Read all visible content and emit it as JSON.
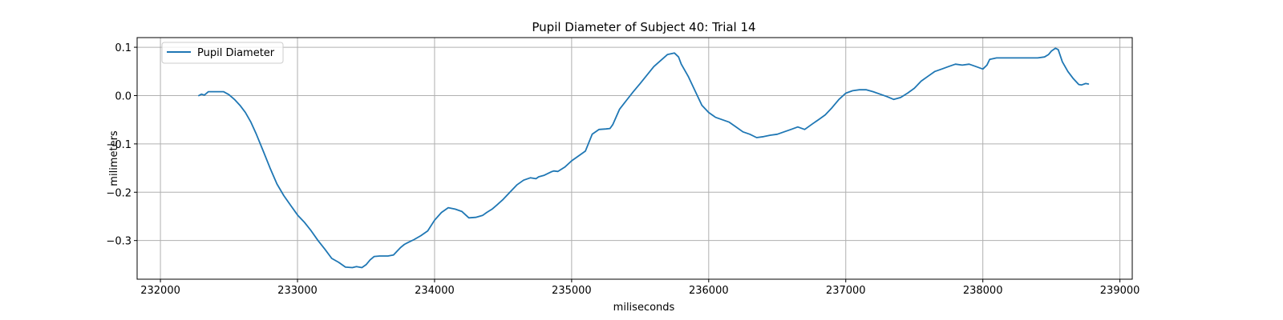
{
  "chart_data": {
    "type": "line",
    "title": "Pupil Diameter of Subject 40: Trial 14",
    "xlabel": "miliseconds",
    "ylabel": "milimeters",
    "xlim": [
      231830,
      239090
    ],
    "ylim": [
      -0.38,
      0.12
    ],
    "xticks": [
      232000,
      233000,
      234000,
      235000,
      236000,
      237000,
      238000,
      239000
    ],
    "xtick_labels": [
      "232000",
      "233000",
      "234000",
      "235000",
      "236000",
      "237000",
      "238000",
      "239000"
    ],
    "yticks": [
      0.1,
      0.0,
      -0.1,
      -0.2,
      -0.3
    ],
    "ytick_labels": [
      "0.1",
      "0.0",
      "−0.1",
      "−0.2",
      "−0.3"
    ],
    "grid": true,
    "legend": {
      "location": "upper left",
      "entries": [
        "Pupil Diameter"
      ]
    },
    "colors": {
      "series": "#1f77b4",
      "grid": "#b0b0b0",
      "frame": "#000000"
    },
    "series": [
      {
        "name": "Pupil Diameter",
        "x": [
          232280,
          232300,
          232320,
          232350,
          232380,
          232420,
          232460,
          232500,
          232540,
          232580,
          232620,
          232660,
          232700,
          232750,
          232800,
          232850,
          232900,
          232950,
          233000,
          233050,
          233100,
          233150,
          233200,
          233250,
          233300,
          233350,
          233400,
          233430,
          233470,
          233500,
          233530,
          233560,
          233600,
          233630,
          233660,
          233700,
          233750,
          233780,
          233800,
          233850,
          233900,
          233950,
          234000,
          234050,
          234100,
          234150,
          234200,
          234250,
          234300,
          234350,
          234380,
          234420,
          234460,
          234500,
          234550,
          234600,
          234650,
          234700,
          234740,
          234760,
          234800,
          234850,
          234870,
          234900,
          234950,
          235000,
          235050,
          235100,
          235150,
          235200,
          235250,
          235280,
          235300,
          235350,
          235400,
          235450,
          235500,
          235600,
          235700,
          235750,
          235780,
          235800,
          235850,
          235900,
          235950,
          236000,
          236050,
          236100,
          236150,
          236200,
          236250,
          236300,
          236350,
          236400,
          236450,
          236500,
          236550,
          236600,
          236650,
          236700,
          236750,
          236800,
          236850,
          236900,
          236950,
          237000,
          237050,
          237100,
          237150,
          237200,
          237250,
          237300,
          237350,
          237400,
          237450,
          237500,
          237550,
          237600,
          237650,
          237700,
          237750,
          237800,
          237850,
          237900,
          237950,
          238000,
          238030,
          238050,
          238100,
          238200,
          238300,
          238400,
          238450,
          238480,
          238500,
          238530,
          238550,
          238580,
          238620,
          238660,
          238700,
          238720,
          238750,
          238770
        ],
        "y": [
          0.0,
          0.003,
          0.001,
          0.008,
          0.008,
          0.008,
          0.008,
          0.002,
          -0.008,
          -0.02,
          -0.035,
          -0.055,
          -0.08,
          -0.115,
          -0.15,
          -0.183,
          -0.207,
          -0.227,
          -0.247,
          -0.262,
          -0.28,
          -0.3,
          -0.318,
          -0.337,
          -0.345,
          -0.355,
          -0.356,
          -0.354,
          -0.356,
          -0.35,
          -0.34,
          -0.333,
          -0.332,
          -0.332,
          -0.332,
          -0.33,
          -0.315,
          -0.308,
          -0.305,
          -0.298,
          -0.29,
          -0.28,
          -0.258,
          -0.242,
          -0.232,
          -0.235,
          -0.24,
          -0.253,
          -0.252,
          -0.248,
          -0.242,
          -0.235,
          -0.225,
          -0.215,
          -0.2,
          -0.185,
          -0.175,
          -0.17,
          -0.172,
          -0.168,
          -0.165,
          -0.158,
          -0.156,
          -0.157,
          -0.148,
          -0.135,
          -0.125,
          -0.115,
          -0.08,
          -0.07,
          -0.069,
          -0.068,
          -0.06,
          -0.028,
          -0.01,
          0.008,
          0.025,
          0.06,
          0.085,
          0.088,
          0.08,
          0.065,
          0.04,
          0.01,
          -0.02,
          -0.035,
          -0.045,
          -0.05,
          -0.055,
          -0.065,
          -0.075,
          -0.08,
          -0.087,
          -0.085,
          -0.082,
          -0.08,
          -0.075,
          -0.07,
          -0.065,
          -0.07,
          -0.06,
          -0.05,
          -0.04,
          -0.025,
          -0.008,
          0.005,
          0.01,
          0.012,
          0.012,
          0.008,
          0.003,
          -0.002,
          -0.008,
          -0.004,
          0.005,
          0.015,
          0.03,
          0.04,
          0.05,
          0.055,
          0.06,
          0.065,
          0.063,
          0.065,
          0.06,
          0.055,
          0.063,
          0.075,
          0.078,
          0.078,
          0.078,
          0.078,
          0.08,
          0.085,
          0.092,
          0.098,
          0.095,
          0.07,
          0.05,
          0.035,
          0.023,
          0.022,
          0.025,
          0.024
        ]
      }
    ]
  }
}
